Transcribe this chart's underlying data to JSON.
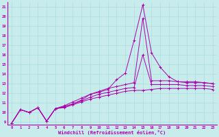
{
  "xlabel": "Windchill (Refroidissement éolien,°C)",
  "background_color": "#c8ecec",
  "grid_color": "#aadddd",
  "line_color": "#aa00aa",
  "xlim": [
    -0.5,
    23.5
  ],
  "ylim": [
    8.7,
    21.5
  ],
  "yticks": [
    9,
    10,
    11,
    12,
    13,
    14,
    15,
    16,
    17,
    18,
    19,
    20,
    21
  ],
  "xticks": [
    0,
    1,
    2,
    3,
    4,
    5,
    6,
    7,
    8,
    9,
    10,
    11,
    12,
    13,
    14,
    15,
    16,
    17,
    18,
    19,
    20,
    21,
    22,
    23
  ],
  "x": [
    0,
    1,
    2,
    3,
    4,
    5,
    6,
    7,
    8,
    9,
    10,
    11,
    12,
    13,
    14,
    15,
    16,
    17,
    18,
    19,
    20,
    21,
    22,
    23
  ],
  "line1": [
    8.9,
    10.3,
    10.0,
    10.5,
    9.1,
    10.4,
    10.6,
    10.9,
    11.3,
    11.9,
    12.1,
    12.4,
    13.4,
    14.1,
    17.5,
    21.2,
    16.2,
    14.7,
    13.7,
    13.2,
    13.1,
    13.1,
    13.1,
    13.0
  ],
  "line2": [
    8.9,
    10.3,
    10.0,
    10.5,
    9.1,
    10.4,
    10.7,
    11.1,
    11.5,
    11.9,
    12.2,
    12.5,
    12.7,
    12.9,
    13.1,
    19.8,
    13.3,
    13.3,
    13.3,
    13.2,
    13.2,
    13.2,
    13.1,
    13.0
  ],
  "line3": [
    8.9,
    10.3,
    10.0,
    10.5,
    9.1,
    10.4,
    10.6,
    10.9,
    11.2,
    11.6,
    11.9,
    12.1,
    12.3,
    12.5,
    12.6,
    16.0,
    12.9,
    12.9,
    12.9,
    12.9,
    12.8,
    12.8,
    12.8,
    12.7
  ],
  "line4": [
    8.9,
    10.3,
    10.0,
    10.5,
    9.1,
    10.4,
    10.5,
    10.8,
    11.1,
    11.4,
    11.6,
    11.8,
    12.0,
    12.2,
    12.3,
    12.3,
    12.4,
    12.5,
    12.5,
    12.5,
    12.5,
    12.5,
    12.5,
    12.4
  ]
}
